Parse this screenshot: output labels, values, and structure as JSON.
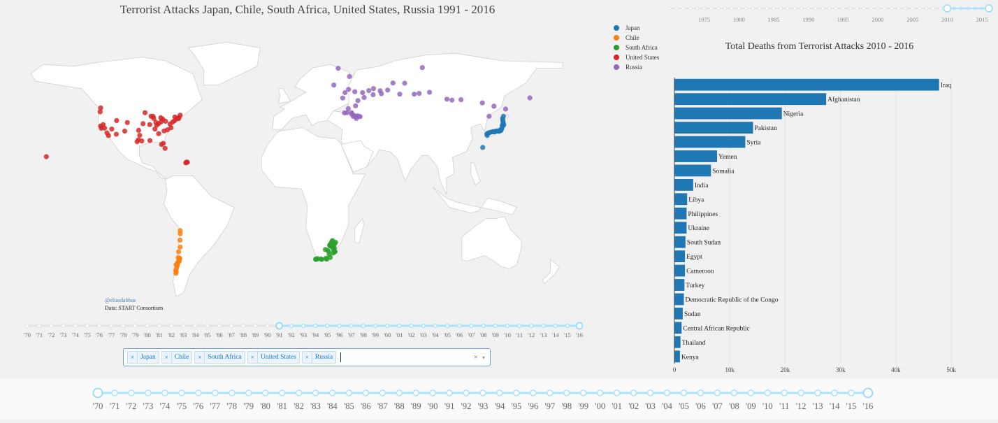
{
  "map": {
    "title": "Terrorist Attacks Japan, Chile, South Africa, United States, Russia  1991 - 2016",
    "credit_handle": "@eliasdabbas",
    "credit_source": "Data: START Consortium",
    "legend": [
      {
        "name": "Japan",
        "color": "#1f77b4"
      },
      {
        "name": "Chile",
        "color": "#ff7f0e"
      },
      {
        "name": "South Africa",
        "color": "#2ca02c"
      },
      {
        "name": "United States",
        "color": "#d62728"
      },
      {
        "name": "Russia",
        "color": "#9467bd"
      }
    ]
  },
  "country_select": {
    "selected": [
      "Japan",
      "Chile",
      "South Africa",
      "United States",
      "Russia"
    ],
    "remove_glyph": "×",
    "clear_glyph": "×",
    "arrow_glyph": "▾"
  },
  "map_year_slider": {
    "labels": [
      "'70",
      "'71",
      "'72",
      "'73",
      "'74",
      "'75",
      "'76",
      "'77",
      "'78",
      "'79",
      "'80",
      "'81",
      "'82",
      "'83",
      "'84",
      "'85",
      "'86",
      "'87",
      "'88",
      "'89",
      "'90",
      "'91",
      "'92",
      "'93",
      "'94",
      "'95",
      "'96",
      "'97",
      "'98",
      "'99",
      "'00",
      "'01",
      "'02",
      "'03",
      "'04",
      "'05",
      "'06",
      "'07",
      "'08",
      "'09",
      "'10",
      "'11",
      "'12",
      "'13",
      "'14",
      "'15",
      "'16"
    ],
    "range_start": "'91",
    "range_end": "'16"
  },
  "top_year_slider": {
    "labels": [
      "1975",
      "1980",
      "1985",
      "1990",
      "1995",
      "2000",
      "2005",
      "2010",
      "2015"
    ],
    "min": 1970,
    "max": 2016,
    "range": [
      2010,
      2016
    ]
  },
  "bottom_year_slider": {
    "labels": [
      "'70",
      "'71",
      "'72",
      "'73",
      "'74",
      "'75",
      "'76",
      "'77",
      "'78",
      "'79",
      "'80",
      "'81",
      "'82",
      "'83",
      "'84",
      "'85",
      "'86",
      "'87",
      "'88",
      "'89",
      "'90",
      "'91",
      "'92",
      "'93",
      "'94",
      "'95",
      "'96",
      "'97",
      "'98",
      "'99",
      "'00",
      "'01",
      "'02",
      "'03",
      "'04",
      "'05",
      "'06",
      "'07",
      "'08",
      "'09",
      "'10",
      "'11",
      "'12",
      "'13",
      "'14",
      "'15",
      "'16"
    ],
    "range_start": "'70",
    "range_end": "'16"
  },
  "chart_data": [
    {
      "type": "scatter",
      "title": "Terrorist Attacks Japan, Chile, South Africa, United States, Russia  1991 - 2016",
      "projection": "equirectangular world map",
      "series": [
        {
          "name": "Japan",
          "color": "#1f77b4",
          "points_lonlat": [
            [
              141.3,
              43.1
            ],
            [
              140.7,
              41.8
            ],
            [
              140.9,
              40.6
            ],
            [
              141.1,
              39.7
            ],
            [
              140.5,
              38.3
            ],
            [
              139.7,
              35.7
            ],
            [
              139.6,
              35.4
            ],
            [
              139.0,
              35.6
            ],
            [
              138.4,
              34.9
            ],
            [
              137.0,
              35.2
            ],
            [
              136.9,
              35.1
            ],
            [
              135.5,
              34.7
            ],
            [
              135.2,
              34.7
            ],
            [
              135.8,
              35.0
            ],
            [
              134.6,
              34.8
            ],
            [
              133.9,
              34.7
            ],
            [
              132.5,
              34.4
            ],
            [
              131.4,
              34.1
            ],
            [
              130.4,
              33.6
            ],
            [
              130.6,
              32.8
            ],
            [
              127.7,
              26.3
            ],
            [
              141.5,
              38.6
            ],
            [
              140.1,
              36.4
            ],
            [
              139.8,
              36.0
            ],
            [
              141.0,
              37.8
            ]
          ]
        },
        {
          "name": "Chile",
          "color": "#ff7f0e",
          "points_lonlat": [
            [
              -70.3,
              -18.5
            ],
            [
              -70.2,
              -20.2
            ],
            [
              -70.4,
              -23.6
            ],
            [
              -70.3,
              -27.4
            ],
            [
              -71.3,
              -29.9
            ],
            [
              -71.6,
              -33.0
            ],
            [
              -70.7,
              -33.4
            ],
            [
              -70.6,
              -33.5
            ],
            [
              -70.7,
              -33.6
            ],
            [
              -71.0,
              -34.2
            ],
            [
              -71.6,
              -35.4
            ],
            [
              -72.1,
              -36.6
            ],
            [
              -73.0,
              -36.8
            ],
            [
              -72.6,
              -38.7
            ],
            [
              -73.2,
              -39.8
            ],
            [
              -73.1,
              -41.5
            ],
            [
              -72.9,
              -40.6
            ],
            [
              -72.3,
              -37.5
            ],
            [
              -71.9,
              -35.9
            ],
            [
              -70.9,
              -34.9
            ]
          ]
        },
        {
          "name": "South Africa",
          "color": "#2ca02c",
          "points_lonlat": [
            [
              18.4,
              -33.9
            ],
            [
              18.6,
              -34.0
            ],
            [
              18.9,
              -33.9
            ],
            [
              19.5,
              -33.6
            ],
            [
              22.4,
              -34.0
            ],
            [
              25.6,
              -33.9
            ],
            [
              27.9,
              -33.0
            ],
            [
              26.2,
              -29.1
            ],
            [
              28.0,
              -26.2
            ],
            [
              28.2,
              -25.7
            ],
            [
              27.8,
              -26.7
            ],
            [
              29.4,
              -23.9
            ],
            [
              30.9,
              -29.9
            ],
            [
              30.4,
              -29.6
            ],
            [
              31.0,
              -29.8
            ],
            [
              30.0,
              -28.5
            ],
            [
              29.2,
              -27.4
            ],
            [
              28.5,
              -26.9
            ],
            [
              27.5,
              -26.4
            ],
            [
              28.7,
              -25.3
            ],
            [
              30.9,
              -25.5
            ],
            [
              31.4,
              -24.8
            ],
            [
              26.8,
              -29.8
            ],
            [
              24.7,
              -28.7
            ],
            [
              28.1,
              -26.0
            ],
            [
              27.2,
              -31.5
            ],
            [
              29.8,
              -30.6
            ],
            [
              30.6,
              -27.8
            ],
            [
              30.1,
              -26.6
            ],
            [
              28.9,
              -24.4
            ],
            [
              25.0,
              -33.5
            ],
            [
              21.8,
              -33.8
            ]
          ]
        },
        {
          "name": "United States",
          "color": "#d62728",
          "points_lonlat": [
            [
              -122.4,
              37.8
            ],
            [
              -118.2,
              34.1
            ],
            [
              -117.2,
              32.7
            ],
            [
              -122.3,
              47.6
            ],
            [
              -122.7,
              45.5
            ],
            [
              -112.1,
              33.4
            ],
            [
              -104.9,
              39.7
            ],
            [
              -111.9,
              40.8
            ],
            [
              -115.1,
              36.2
            ],
            [
              -97.7,
              30.3
            ],
            [
              -95.4,
              29.8
            ],
            [
              -96.8,
              32.8
            ],
            [
              -98.5,
              29.4
            ],
            [
              -90.1,
              30.0
            ],
            [
              -87.6,
              41.9
            ],
            [
              -83.0,
              42.3
            ],
            [
              -81.7,
              41.5
            ],
            [
              -84.4,
              33.7
            ],
            [
              -80.2,
              25.8
            ],
            [
              -81.4,
              28.5
            ],
            [
              -82.5,
              27.9
            ],
            [
              -77.0,
              38.9
            ],
            [
              -75.2,
              40.0
            ],
            [
              -74.0,
              40.7
            ],
            [
              -71.1,
              42.4
            ],
            [
              -73.8,
              42.7
            ],
            [
              -79.9,
              40.4
            ],
            [
              -86.2,
              39.8
            ],
            [
              -90.2,
              38.6
            ],
            [
              -93.3,
              45.0
            ],
            [
              -94.6,
              39.1
            ],
            [
              -97.5,
              35.5
            ],
            [
              -86.8,
              36.2
            ],
            [
              -80.8,
              35.2
            ],
            [
              -78.6,
              35.8
            ],
            [
              -76.3,
              36.9
            ],
            [
              -120.7,
              38.6
            ],
            [
              -121.9,
              36.6
            ],
            [
              -119.8,
              36.7
            ],
            [
              -106.6,
              35.1
            ],
            [
              -88.0,
              43.0
            ],
            [
              -89.4,
              43.1
            ],
            [
              -85.7,
              38.3
            ],
            [
              -84.5,
              39.1
            ],
            [
              -82.9,
              40.0
            ],
            [
              -72.7,
              41.8
            ],
            [
              -70.3,
              43.7
            ],
            [
              -71.4,
              41.8
            ],
            [
              -157.9,
              21.3
            ],
            [
              -66.1,
              18.4
            ],
            [
              -65.6,
              18.3
            ],
            [
              -66.6,
              18.0
            ]
          ]
        },
        {
          "name": "Russia",
          "color": "#9467bd",
          "points_lonlat": [
            [
              37.6,
              55.8
            ],
            [
              30.3,
              59.9
            ],
            [
              39.7,
              47.2
            ],
            [
              38.9,
              45.0
            ],
            [
              43.0,
              43.0
            ],
            [
              44.5,
              43.0
            ],
            [
              45.7,
              43.3
            ],
            [
              46.7,
              43.0
            ],
            [
              47.5,
              42.9
            ],
            [
              43.5,
              43.5
            ],
            [
              42.0,
              44.2
            ],
            [
              41.9,
              45.0
            ],
            [
              44.0,
              56.3
            ],
            [
              49.1,
              55.8
            ],
            [
              50.1,
              53.2
            ],
            [
              56.0,
              54.7
            ],
            [
              60.6,
              56.8
            ],
            [
              61.4,
              55.2
            ],
            [
              65.5,
              57.2
            ],
            [
              73.4,
              55.0
            ],
            [
              82.9,
              55.0
            ],
            [
              86.1,
              55.4
            ],
            [
              92.9,
              56.0
            ],
            [
              104.3,
              52.3
            ],
            [
              107.6,
              51.8
            ],
            [
              113.5,
              52.0
            ],
            [
              127.5,
              50.3
            ],
            [
              135.1,
              48.5
            ],
            [
              131.9,
              43.1
            ],
            [
              142.7,
              47.0
            ],
            [
              158.6,
              53.0
            ],
            [
              33.1,
              68.9
            ],
            [
              40.5,
              64.5
            ],
            [
              39.9,
              57.6
            ],
            [
              36.1,
              52.9
            ],
            [
              44.5,
              48.7
            ],
            [
              46.0,
              51.5
            ],
            [
              53.2,
              56.9
            ],
            [
              56.2,
              58.0
            ],
            [
              69.0,
              61.0
            ],
            [
              76.6,
              60.9
            ],
            [
              88.2,
              69.3
            ],
            [
              37.2,
              44.9
            ],
            [
              45.0,
              41.9
            ]
          ]
        }
      ]
    },
    {
      "type": "bar",
      "orientation": "horizontal",
      "title": "Total Deaths from Terrorist Attacks  2010 - 2016",
      "categories": [
        "Iraq",
        "Afghanistan",
        "Nigeria",
        "Pakistan",
        "Syria",
        "Yemen",
        "Somalia",
        "India",
        "Libya",
        "Philippines",
        "Ukraine",
        "South Sudan",
        "Egypt",
        "Cameroon",
        "Turkey",
        "Democratic Republic of the Congo",
        "Sudan",
        "Central African Republic",
        "Thailand",
        "Kenya"
      ],
      "values": [
        47800,
        27400,
        19400,
        14200,
        12800,
        7700,
        6600,
        3400,
        2300,
        2200,
        2200,
        2000,
        1900,
        1900,
        1800,
        1700,
        1500,
        1300,
        1100,
        1000
      ],
      "xlim": [
        0,
        52000
      ],
      "xticks": [
        0,
        10000,
        20000,
        30000,
        40000,
        50000
      ],
      "xtick_labels": [
        "0",
        "10k",
        "20k",
        "30k",
        "40k",
        "50k"
      ],
      "bar_color": "#1f77b4"
    }
  ]
}
